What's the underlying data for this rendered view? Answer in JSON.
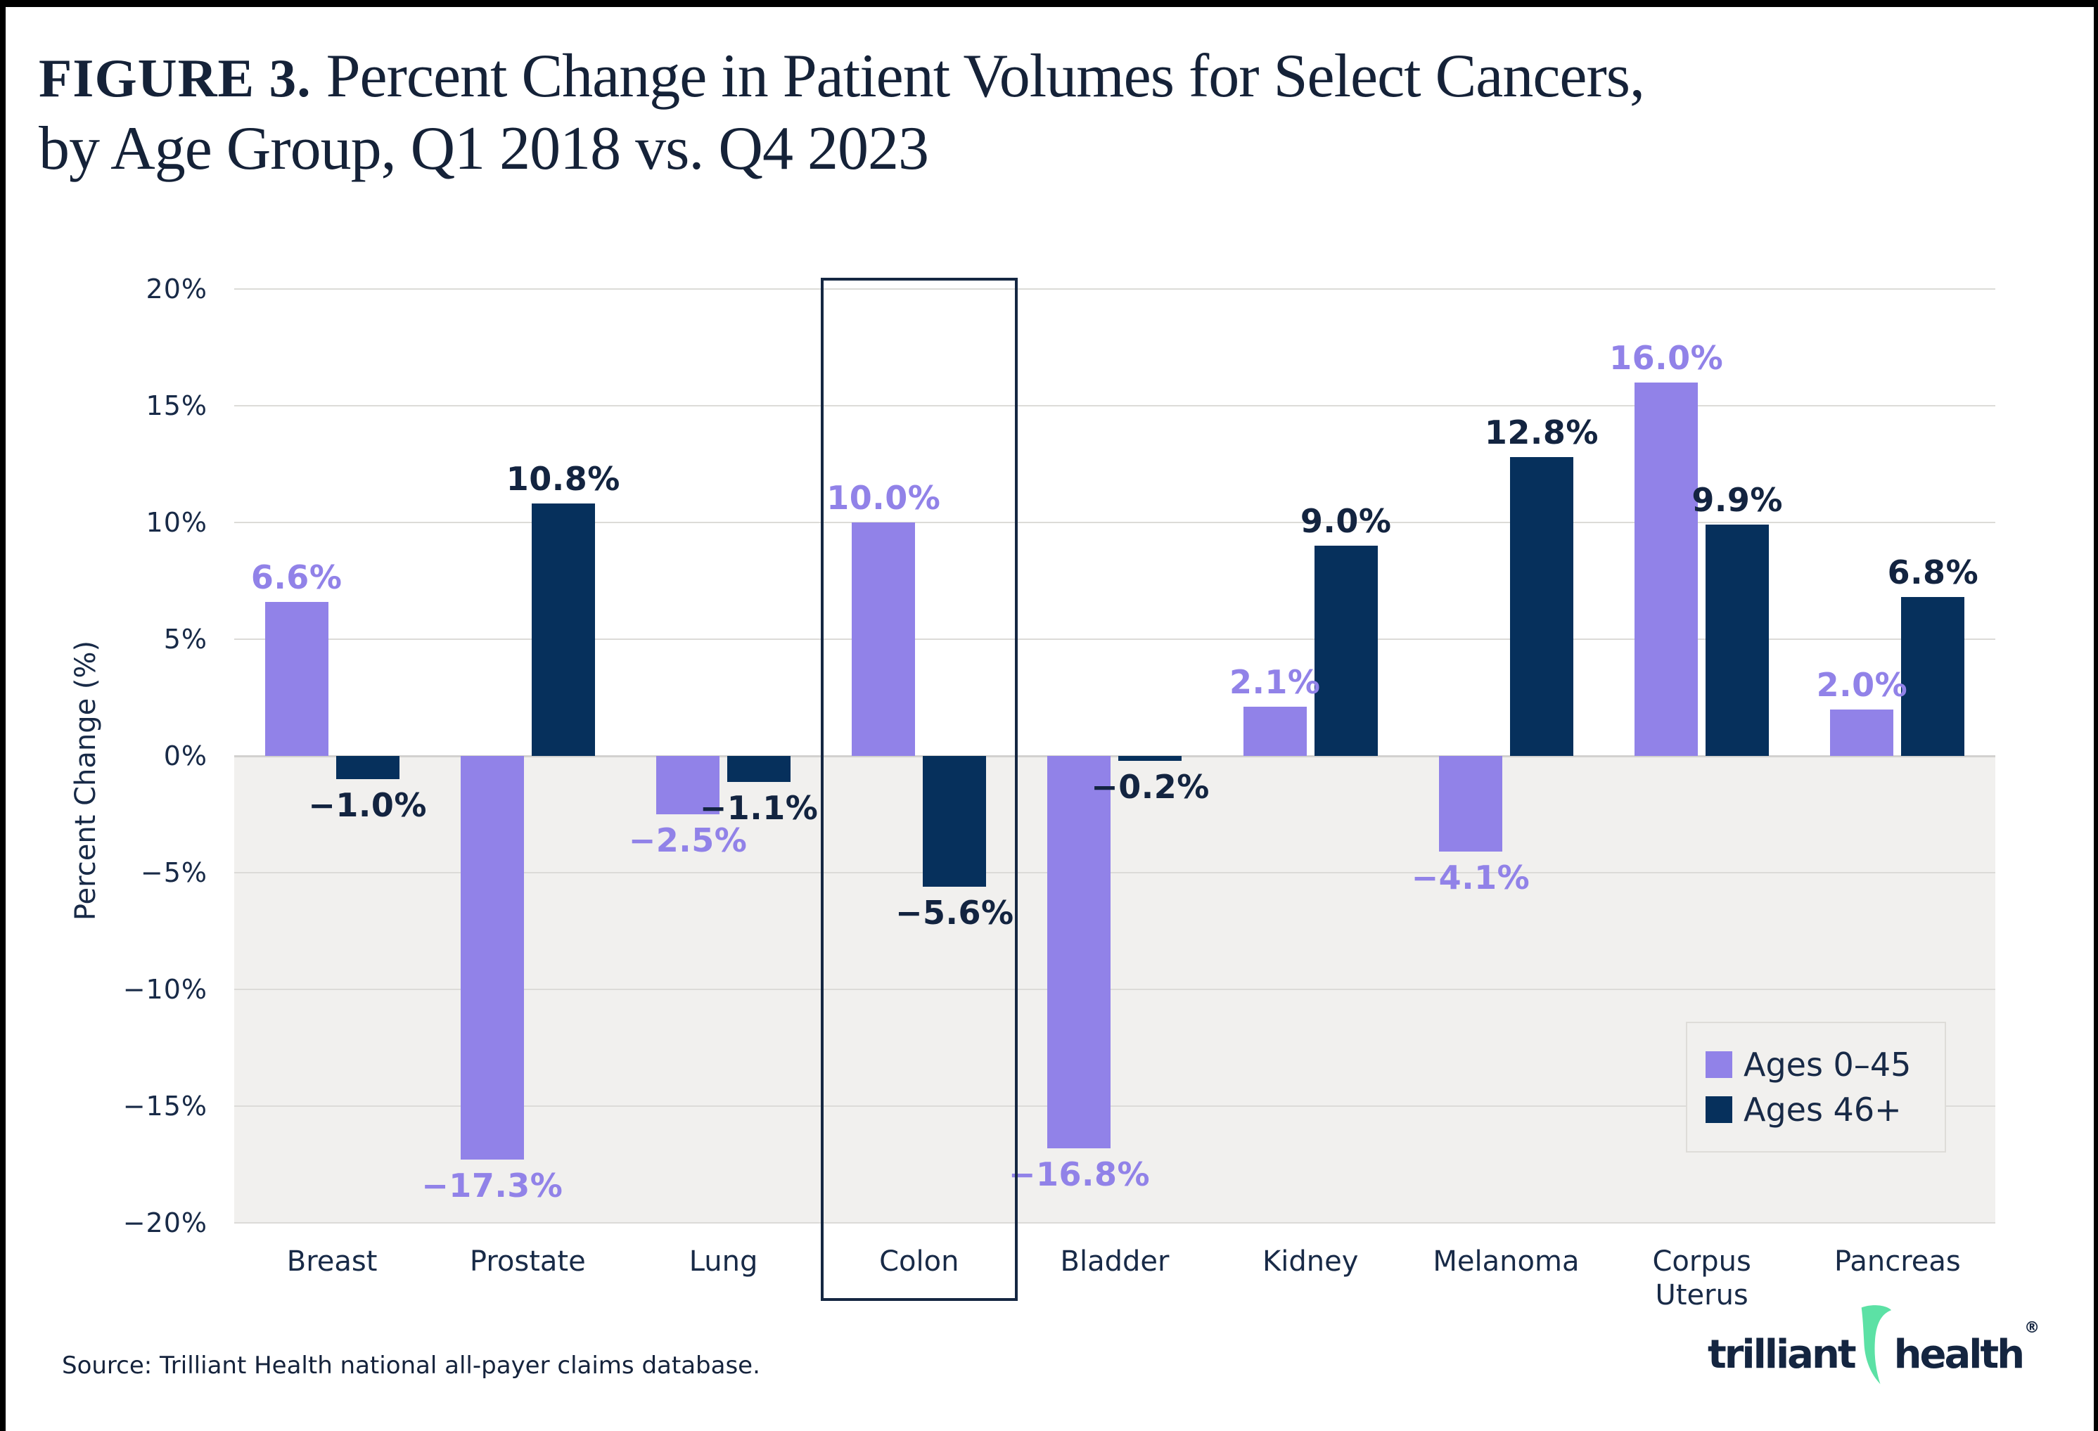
{
  "figure": {
    "label": "FIGURE 3.",
    "title_line1": "Percent Change in Patient Volumes for Select Cancers,",
    "title_line2": "by Age Group, Q1 2018 vs. Q4 2023"
  },
  "chart_data": {
    "type": "bar",
    "title": "Percent Change in Patient Volumes for Select Cancers, by Age Group, Q1 2018 vs. Q4 2023",
    "xlabel": "",
    "ylabel": "Percent Change (%)",
    "ylim": [
      -20,
      20
    ],
    "ytick_step": 5,
    "ytick_labels": [
      "20%",
      "15%",
      "10%",
      "5%",
      "0%",
      "−5%",
      "−10%",
      "−15%",
      "−20%"
    ],
    "grid": true,
    "legend_position": "inside-bottom-right",
    "categories": [
      "Breast",
      "Prostate",
      "Lung",
      "Colon",
      "Bladder",
      "Kidney",
      "Melanoma",
      "Corpus Uterus",
      "Pancreas"
    ],
    "series": [
      {
        "name": "Ages 0–45",
        "color": "#9182e8",
        "label_color": "#9182e8",
        "values": [
          6.6,
          -17.3,
          -2.5,
          10.0,
          -16.8,
          2.1,
          -4.1,
          16.0,
          2.0
        ],
        "labels": [
          "6.6%",
          "−17.3%",
          "−2.5%",
          "10.0%",
          "−16.8%",
          "2.1%",
          "−4.1%",
          "16.0%",
          "2.0%"
        ]
      },
      {
        "name": "Ages 46+",
        "color": "#06305c",
        "label_color": "#132440",
        "values": [
          -1.0,
          10.8,
          -1.1,
          -5.6,
          -0.2,
          9.0,
          12.8,
          9.9,
          6.8
        ],
        "labels": [
          "−1.0%",
          "10.8%",
          "−1.1%",
          "−5.6%",
          "−0.2%",
          "9.0%",
          "12.8%",
          "9.9%",
          "6.8%"
        ]
      }
    ],
    "highlighted_category": "Colon",
    "highlight_color": "#152742",
    "negative_region_color": "#f1f0ee",
    "gridline_color": "#dcdbd8"
  },
  "source": "Source: Trilliant Health national all-payer claims database.",
  "logo": {
    "word1": "trilliant",
    "word2": "health",
    "registered": "®",
    "swoosh_color": "#5ce1a5",
    "text_color": "#142540"
  }
}
